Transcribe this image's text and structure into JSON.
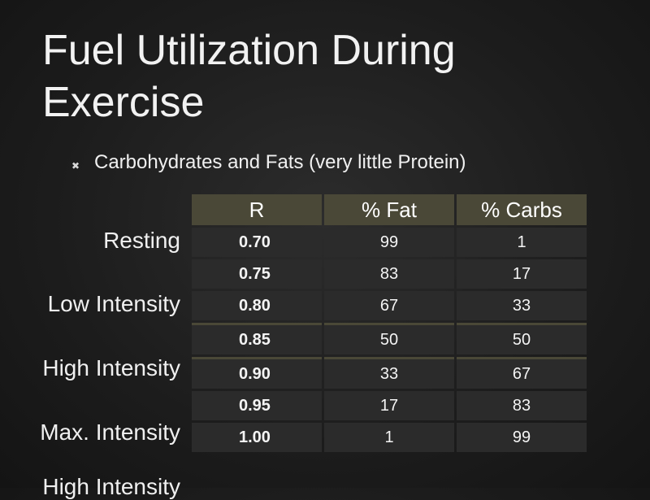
{
  "slide": {
    "title": "Fuel Utilization During Exercise",
    "bullet": "Carbohydrates and Fats (very little Protein)",
    "bullet_icon": "crossed-x-bullet-icon"
  },
  "intensity_labels": [
    "Resting",
    "Low Intensity",
    "High Intensity",
    "Max. Intensity",
    "High Intensity"
  ],
  "table": {
    "headers": [
      "R",
      "% Fat",
      "% Carbs"
    ],
    "rows": [
      [
        "0.70",
        "99",
        "1"
      ],
      [
        "0.75",
        "83",
        "17"
      ],
      [
        "0.80",
        "67",
        "33"
      ],
      [
        "0.85",
        "50",
        "50"
      ],
      [
        "0.90",
        "33",
        "67"
      ],
      [
        "0.95",
        "17",
        "83"
      ],
      [
        "1.00",
        "1",
        "99"
      ]
    ]
  },
  "colors": {
    "background": "#1b1b1b",
    "header_fill": "#4a4837",
    "cell_fill": "#2b2b2b",
    "text": "#ffffff"
  }
}
